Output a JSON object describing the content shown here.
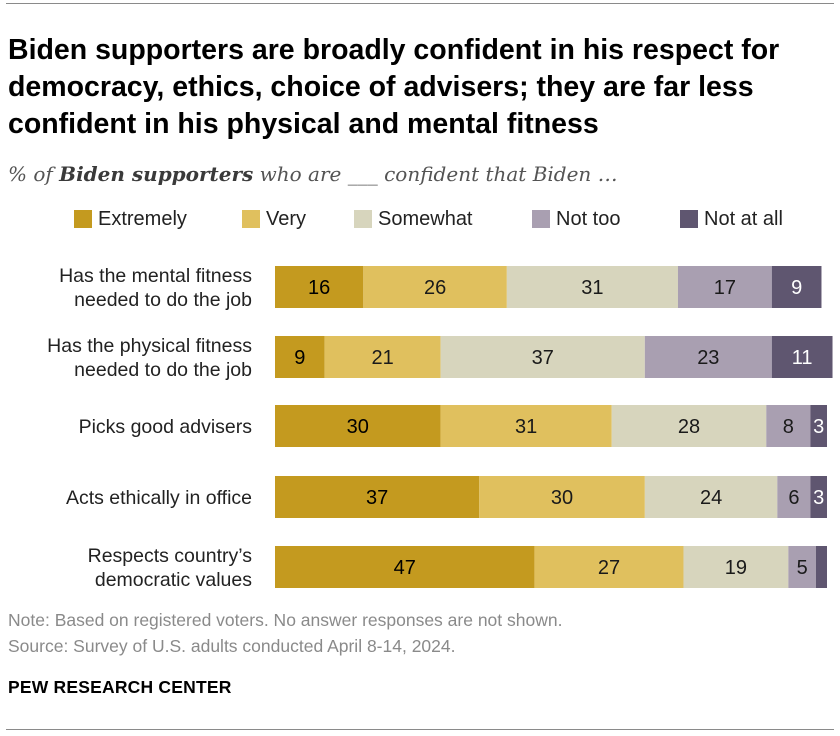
{
  "title": "Biden supporters are broadly confident in his respect for democracy, ethics, choice of advisers; they are far less confident in his physical and mental fitness",
  "subtitle": {
    "prefix": "% of ",
    "emphasis": "Biden supporters",
    "suffix": " who are ___ confident that Biden …"
  },
  "colors": {
    "extremely": "#c49a1f",
    "very": "#e0c05e",
    "somewhat": "#d7d5bd",
    "not_too": "#a99fb1",
    "not_at_all": "#5f5670"
  },
  "chart_data": {
    "type": "bar",
    "orientation": "horizontal",
    "stacked": true,
    "categories": [
      "Has the mental fitness needed to do the job",
      "Has the physical fitness needed to do the job",
      "Picks good advisers",
      "Acts ethically in office",
      "Respects country’s democratic values"
    ],
    "category_lines": [
      [
        "Has the mental fitness",
        "needed to do the job"
      ],
      [
        "Has the physical fitness",
        "needed to do the job"
      ],
      [
        "Picks good advisers"
      ],
      [
        "Acts ethically in office"
      ],
      [
        "Respects country’s",
        "democratic values"
      ]
    ],
    "series": [
      {
        "name": "Extremely",
        "values": [
          16,
          9,
          30,
          37,
          47
        ],
        "labels": [
          "16",
          "9",
          "30",
          "37",
          "47"
        ]
      },
      {
        "name": "Very",
        "values": [
          26,
          21,
          31,
          30,
          27
        ],
        "labels": [
          "26",
          "21",
          "31",
          "30",
          "27"
        ]
      },
      {
        "name": "Somewhat",
        "values": [
          31,
          37,
          28,
          24,
          19
        ],
        "labels": [
          "31",
          "37",
          "28",
          "24",
          "19"
        ]
      },
      {
        "name": "Not too",
        "values": [
          17,
          23,
          8,
          6,
          5
        ],
        "labels": [
          "17",
          "23",
          "8",
          "6",
          "5"
        ]
      },
      {
        "name": "Not at all",
        "values": [
          9,
          11,
          3,
          3,
          2
        ],
        "labels": [
          "9",
          "11",
          "3",
          "3",
          ""
        ]
      }
    ],
    "legend_position": "top",
    "grid": false
  },
  "note": "Note: Based on registered voters. No answer responses are not shown.",
  "source": "Source: Survey of U.S. adults conducted April 8-14, 2024.",
  "brand": "PEW RESEARCH CENTER"
}
